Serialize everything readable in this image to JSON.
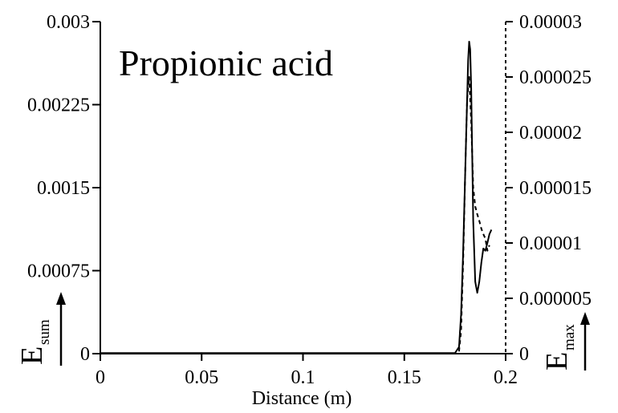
{
  "chart_data": {
    "type": "line",
    "title": "Propionic acid",
    "xlabel": "Distance (m)",
    "ylabel_left": {
      "main": "E",
      "sub": "sum"
    },
    "ylabel_right": {
      "main": "E",
      "sub": "max"
    },
    "xlim": [
      0,
      0.2
    ],
    "ylim_left": [
      0,
      0.003
    ],
    "ylim_right": [
      0,
      3e-05
    ],
    "grid": false,
    "legend": "none",
    "x_ticks": [
      "0",
      "0.05",
      "0.1",
      "0.15",
      "0.2"
    ],
    "x_tick_values": [
      0,
      0.05,
      0.1,
      0.15,
      0.2
    ],
    "y_left_ticks": [
      "0",
      "0.00075",
      "0.0015",
      "0.00225",
      "0.003"
    ],
    "y_left_tick_values": [
      0,
      0.00075,
      0.0015,
      0.00225,
      0.003
    ],
    "y_right_ticks": [
      "0",
      "0.000005",
      "0.00001",
      "0.000015",
      "0.00002",
      "0.000025",
      "0.00003"
    ],
    "y_right_tick_values": [
      0,
      5e-06,
      1e-05,
      1.5e-05,
      2e-05,
      2.5e-05,
      3e-05
    ],
    "series": [
      {
        "axis": "left",
        "style": "solid",
        "color": "#000000",
        "x": [
          0.0,
          0.05,
          0.1,
          0.15,
          0.175,
          0.177,
          0.178,
          0.179,
          0.18,
          0.181,
          0.1815,
          0.182,
          0.1825,
          0.183,
          0.1835,
          0.184,
          0.185,
          0.186,
          0.187,
          0.188,
          0.189,
          0.19,
          0.191,
          0.192,
          0.193
        ],
        "y": [
          5e-06,
          5e-06,
          5e-06,
          5e-06,
          5e-06,
          6e-05,
          0.00035,
          0.0009,
          0.0016,
          0.0023,
          0.00265,
          0.00282,
          0.00275,
          0.0024,
          0.0018,
          0.0012,
          0.00065,
          0.00055,
          0.00065,
          0.00082,
          0.00095,
          0.00093,
          0.001,
          0.00108,
          0.00112
        ]
      },
      {
        "axis": "right",
        "style": "dashed",
        "color": "#000000",
        "x": [
          0.177,
          0.178,
          0.179,
          0.18,
          0.181,
          0.182,
          0.183,
          0.184,
          0.185,
          0.186,
          0.187,
          0.188,
          0.189,
          0.19,
          0.191,
          0.192
        ],
        "y": [
          2e-07,
          2e-06,
          8e-06,
          1.6e-05,
          2.3e-05,
          2.5e-05,
          2.1e-05,
          1.5e-05,
          1.33e-05,
          1.26e-05,
          1.2e-05,
          1.13e-05,
          1.08e-05,
          1.04e-05,
          9.3e-06,
          9.8e-06
        ]
      }
    ]
  }
}
